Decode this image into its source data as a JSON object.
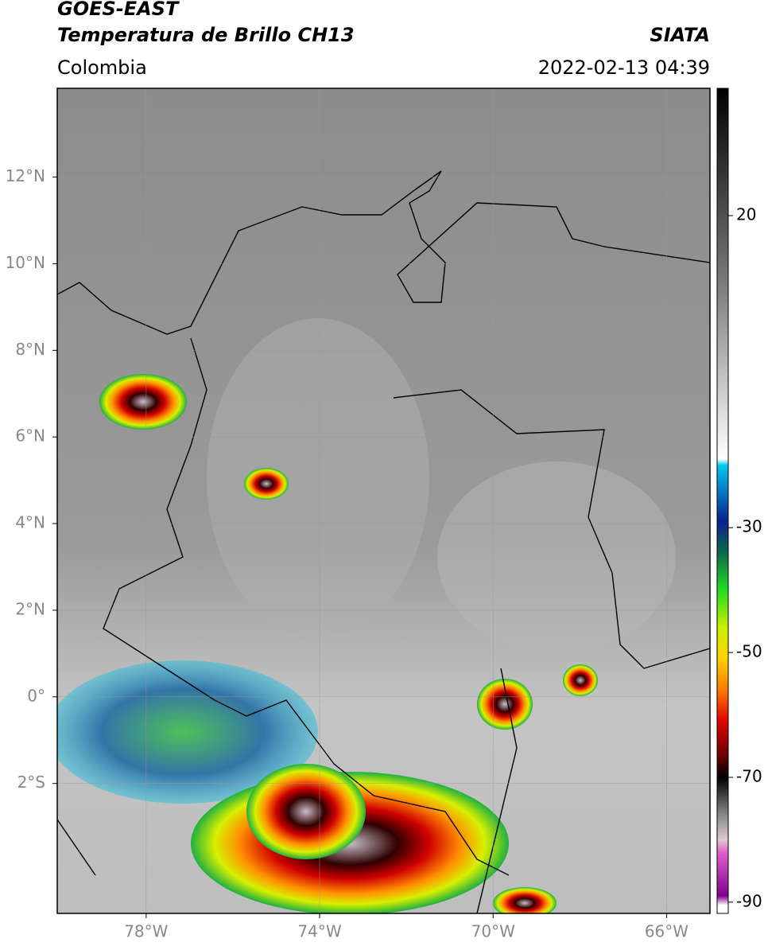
{
  "header": {
    "title": "GOES-EAST",
    "subtitle": "Temperatura de Brillo CH13",
    "source": "SIATA",
    "region": "Colombia",
    "datetime": "2022-02-13 04:39"
  },
  "map": {
    "lonlim": [
      -80.05,
      -65.0
    ],
    "latlim": [
      -5.0,
      14.05
    ],
    "lon_ticks": [
      {
        "value": -78,
        "label": "78°W"
      },
      {
        "value": -74,
        "label": "74°W"
      },
      {
        "value": -70,
        "label": "70°W"
      },
      {
        "value": -66,
        "label": "66°W"
      }
    ],
    "lat_ticks": [
      {
        "value": 12,
        "label": "12°N"
      },
      {
        "value": 10,
        "label": "10°N"
      },
      {
        "value": 8,
        "label": "8°N"
      },
      {
        "value": 6,
        "label": "6°N"
      },
      {
        "value": 4,
        "label": "4°N"
      },
      {
        "value": 2,
        "label": "2°N"
      },
      {
        "value": 0,
        "label": "0°"
      },
      {
        "value": -2,
        "label": "2°S"
      }
    ]
  },
  "colorbar": {
    "lim": [
      -91.8,
      40.4
    ],
    "ticks": [
      20,
      -30,
      -50,
      -70,
      -90
    ],
    "colormap": [
      {
        "value": 40.4,
        "color": "#000000"
      },
      {
        "value": 10,
        "color": "#777777"
      },
      {
        "value": -19,
        "color": "#ffffff"
      },
      {
        "value": -20,
        "color": "#00c8f0"
      },
      {
        "value": -29,
        "color": "#0a2090"
      },
      {
        "value": -34,
        "color": "#0c6a4a"
      },
      {
        "value": -40,
        "color": "#22dd22"
      },
      {
        "value": -46,
        "color": "#c8f000"
      },
      {
        "value": -51,
        "color": "#ffd000"
      },
      {
        "value": -56,
        "color": "#ff7a00"
      },
      {
        "value": -61,
        "color": "#e00000"
      },
      {
        "value": -67,
        "color": "#600000"
      },
      {
        "value": -70,
        "color": "#000000"
      },
      {
        "value": -76,
        "color": "#888888"
      },
      {
        "value": -80,
        "color": "#e0c8d0"
      },
      {
        "value": -82,
        "color": "#e060c8"
      },
      {
        "value": -89,
        "color": "#800090"
      },
      {
        "value": -90.5,
        "color": "#ffffff"
      }
    ]
  }
}
